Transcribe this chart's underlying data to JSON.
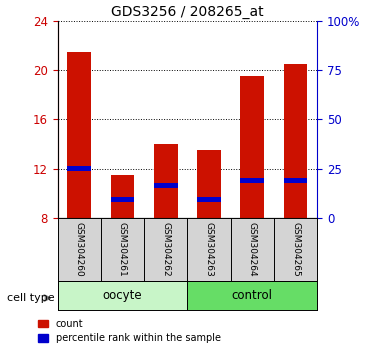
{
  "title": "GDS3256 / 208265_at",
  "samples": [
    "GSM304260",
    "GSM304261",
    "GSM304262",
    "GSM304263",
    "GSM304264",
    "GSM304265"
  ],
  "groups": [
    "oocyte",
    "oocyte",
    "oocyte",
    "control",
    "control",
    "control"
  ],
  "bar_bottom": 8,
  "red_tops": [
    21.5,
    11.5,
    14.0,
    13.5,
    19.5,
    20.5
  ],
  "blue_bottoms": [
    11.8,
    9.3,
    10.4,
    9.3,
    10.8,
    10.8
  ],
  "blue_tops": [
    12.2,
    9.7,
    10.8,
    9.7,
    11.2,
    11.2
  ],
  "ylim_left": [
    8,
    24
  ],
  "yticks_left": [
    8,
    12,
    16,
    20,
    24
  ],
  "ylim_right": [
    0,
    100
  ],
  "yticks_right": [
    0,
    25,
    50,
    75,
    100
  ],
  "ytick_labels_right": [
    "0",
    "25",
    "50",
    "75",
    "100%"
  ],
  "left_tick_color": "#cc0000",
  "right_tick_color": "#0000cc",
  "bar_color_red": "#cc1100",
  "bar_color_blue": "#0000cc",
  "bar_width": 0.55,
  "group_colors_oocyte": "#c8f5c8",
  "group_colors_control": "#66dd66",
  "bg_color": "#ffffff",
  "tick_label_area_color": "#d4d4d4",
  "legend_count": "count",
  "legend_percentile": "percentile rank within the sample",
  "cell_type_label": "cell type"
}
